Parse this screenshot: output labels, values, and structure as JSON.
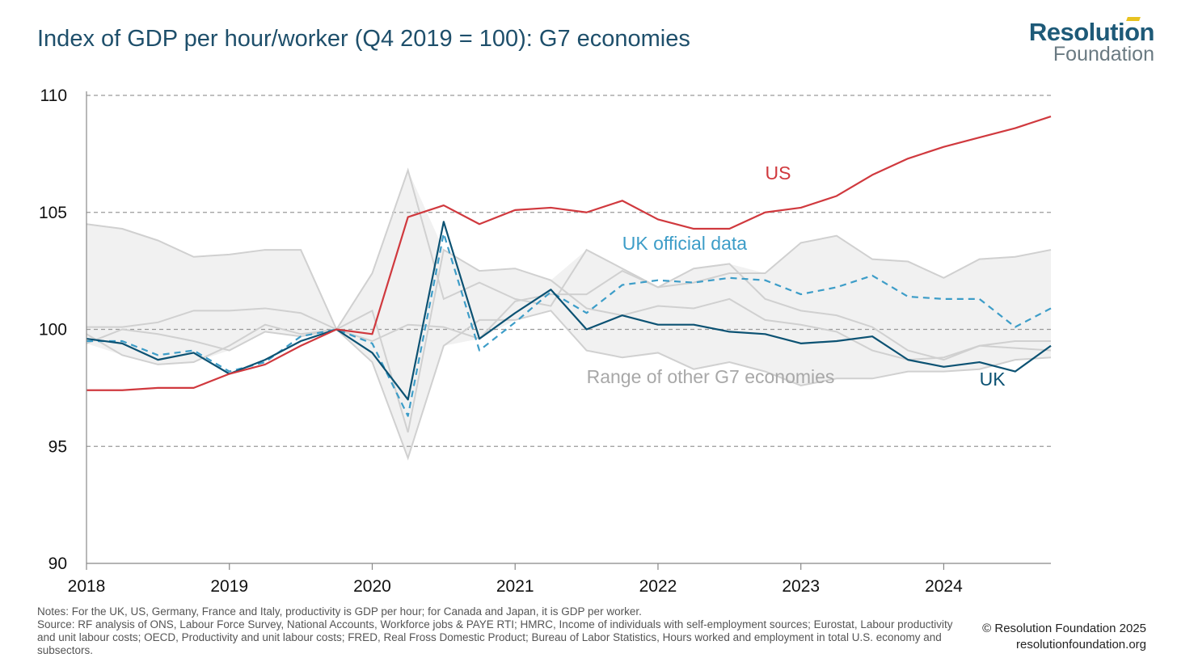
{
  "title": "Index of GDP per hour/worker (Q4 2019 = 100): G7 economies",
  "logo": {
    "top": "Resolution",
    "bottom": "Foundation"
  },
  "notes": {
    "line1": "Notes: For the UK, US, Germany, France and Italy, productivity is GDP per hour; for Canada and Japan, it is GDP per worker.",
    "line2": "Source: RF analysis of ONS, Labour Force Survey, National Accounts, Workforce jobs & PAYE RTI; HMRC, Income of individuals with self-employment sources; Eurostat, Labour productivity and unit labour costs; OECD, Productivity and unit labour costs; FRED, Real Fross Domestic Product; Bureau of Labor Statistics, Hours worked and employment in total U.S. economy and subsectors."
  },
  "copyright": {
    "line1": "© Resolution Foundation 2025",
    "line2": "resolutionfoundation.org"
  },
  "colors": {
    "us": "#d0393e",
    "uk": "#0c5273",
    "uk_official": "#3d9dc8",
    "others": "#d0d0d0",
    "range_fill": "#f1f1f1",
    "grid": "#9a9a9a"
  },
  "chart_data": {
    "type": "line",
    "x": [
      "2018 Q1",
      "2018 Q2",
      "2018 Q3",
      "2018 Q4",
      "2019 Q1",
      "2019 Q2",
      "2019 Q3",
      "2019 Q4",
      "2020 Q1",
      "2020 Q2",
      "2020 Q3",
      "2020 Q4",
      "2021 Q1",
      "2021 Q2",
      "2021 Q3",
      "2021 Q4",
      "2022 Q1",
      "2022 Q2",
      "2022 Q3",
      "2022 Q4",
      "2023 Q1",
      "2023 Q2",
      "2023 Q3",
      "2023 Q4",
      "2024 Q1",
      "2024 Q2",
      "2024 Q3",
      "2024 Q4"
    ],
    "xticks": [
      "2018",
      "2019",
      "2020",
      "2021",
      "2022",
      "2023",
      "2024"
    ],
    "yticks": [
      90,
      95,
      100,
      105,
      110
    ],
    "ylim": [
      90,
      110
    ],
    "grid": "horizontal dashed",
    "series": [
      {
        "name": "US",
        "values": [
          97.4,
          97.4,
          97.5,
          97.5,
          98.1,
          98.5,
          99.3,
          100.0,
          99.8,
          104.8,
          105.3,
          104.5,
          105.1,
          105.2,
          105.0,
          105.5,
          104.7,
          104.3,
          104.3,
          105.0,
          105.2,
          105.7,
          106.6,
          107.3,
          107.8,
          108.2,
          108.6,
          109.1
        ]
      },
      {
        "name": "UK",
        "values": [
          99.6,
          99.4,
          98.7,
          99.0,
          98.1,
          98.7,
          99.5,
          100.0,
          99.0,
          97.0,
          104.6,
          99.6,
          100.7,
          101.7,
          100.0,
          100.6,
          100.2,
          100.2,
          99.9,
          99.8,
          99.4,
          99.5,
          99.7,
          98.7,
          98.4,
          98.6,
          98.2,
          99.3
        ]
      },
      {
        "name": "UK official data",
        "values": [
          99.5,
          99.5,
          98.9,
          99.1,
          98.2,
          98.6,
          99.7,
          100.0,
          99.4,
          96.3,
          104.1,
          99.1,
          100.3,
          101.6,
          100.7,
          101.9,
          102.1,
          102.0,
          102.2,
          102.1,
          101.5,
          101.8,
          102.3,
          101.4,
          101.3,
          101.3,
          100.1,
          100.9
        ]
      },
      {
        "name": "",
        "values": [
          104.5,
          104.3,
          103.8,
          103.1,
          103.2,
          103.4,
          103.4,
          100.0,
          102.4,
          106.8,
          101.3,
          102.0,
          101.3,
          101.0,
          103.4,
          102.6,
          101.8,
          102.6,
          102.8,
          101.3,
          100.8,
          100.6,
          100.1,
          99.1,
          98.7,
          99.3,
          99.2,
          99.1
        ]
      },
      {
        "name": "",
        "values": [
          100.1,
          100.1,
          100.3,
          100.8,
          100.8,
          100.9,
          100.7,
          100.0,
          100.8,
          95.6,
          103.4,
          102.5,
          102.6,
          102.1,
          100.9,
          100.6,
          101.0,
          100.9,
          101.3,
          100.4,
          100.2,
          99.9,
          99.1,
          98.7,
          98.8,
          99.3,
          99.5,
          99.5
        ]
      },
      {
        "name": "",
        "values": [
          99.8,
          98.9,
          98.5,
          98.6,
          99.3,
          100.2,
          99.8,
          100.0,
          98.6,
          94.5,
          99.3,
          100.4,
          100.4,
          100.8,
          99.1,
          98.8,
          99.0,
          98.3,
          98.6,
          98.2,
          97.6,
          97.9,
          97.9,
          98.2,
          98.2,
          98.3,
          98.7,
          98.8
        ]
      },
      {
        "name": "",
        "values": [
          99.4,
          100.0,
          99.8,
          99.5,
          99.1,
          99.9,
          99.7,
          100.0,
          99.5,
          100.2,
          100.1,
          99.6,
          101.2,
          101.5,
          101.5,
          102.5,
          101.8,
          102.0,
          102.4,
          102.4,
          103.7,
          104.0,
          103.0,
          102.9,
          102.2,
          103.0,
          103.1,
          103.4
        ]
      }
    ],
    "annotations": [
      {
        "text": "US",
        "x": "2022 Q4",
        "y": 106.4
      },
      {
        "text": "UK official data",
        "x": "2021 Q4",
        "y": 103.4
      },
      {
        "text": "Range of other G7 economies",
        "x": "2021 Q3",
        "y": 97.7
      },
      {
        "text": "UK",
        "x": "2024 Q2",
        "y": 97.6
      }
    ]
  }
}
